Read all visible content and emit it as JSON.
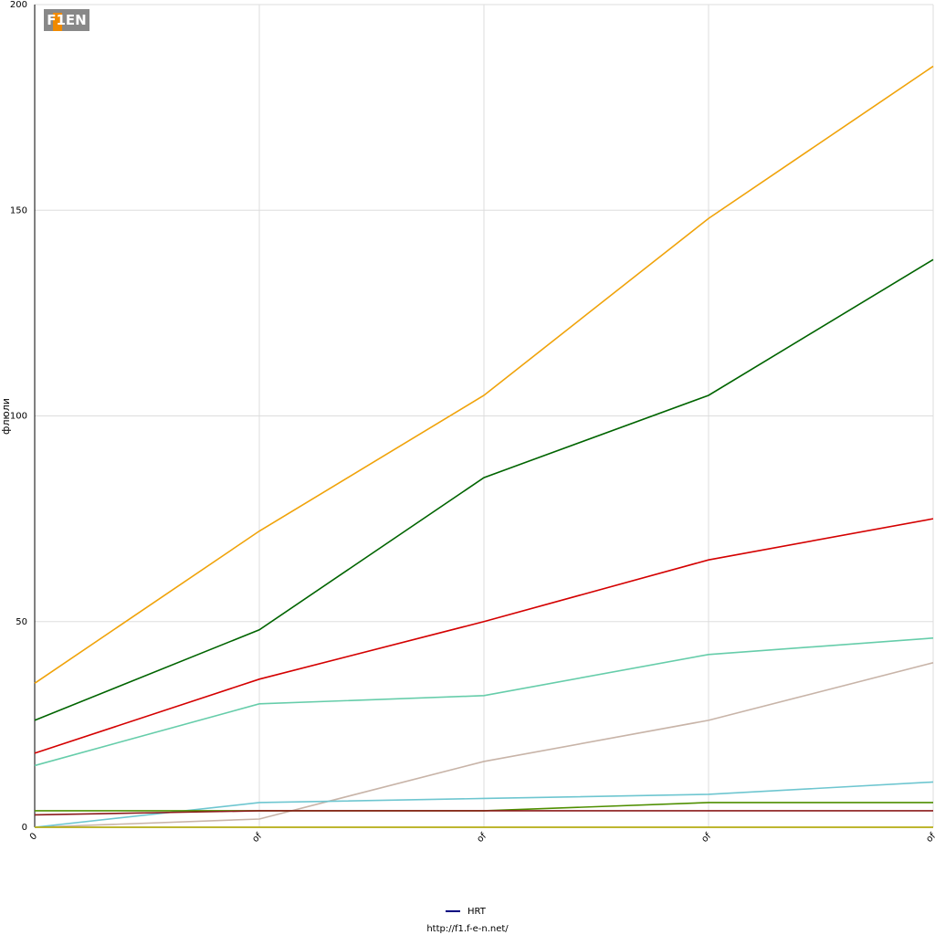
{
  "chart_data": {
    "type": "line",
    "logo": "F1EN",
    "y_label": "флюли",
    "categories": [
      "0",
      "of",
      "of",
      "of",
      "of"
    ],
    "ylim": [
      0,
      200
    ],
    "yticks": [
      0,
      50,
      100,
      150,
      200
    ],
    "grid": true,
    "series": [
      {
        "color": "#f0a30a",
        "values": [
          35,
          72,
          105,
          148,
          185
        ]
      },
      {
        "color": "#006400",
        "values": [
          26,
          48,
          85,
          105,
          138
        ]
      },
      {
        "color": "#d40000",
        "values": [
          18,
          36,
          50,
          65,
          75
        ]
      },
      {
        "color": "#66cdaa",
        "values": [
          15,
          30,
          32,
          42,
          46
        ]
      },
      {
        "color": "#c8b4a8",
        "values": [
          0,
          2,
          16,
          26,
          40
        ]
      },
      {
        "color": "#6ec6d0",
        "values": [
          0,
          6,
          7,
          8,
          11
        ]
      },
      {
        "color": "#4f8f00",
        "values": [
          4,
          4,
          4,
          6,
          6
        ]
      },
      {
        "color": "#8b1a1a",
        "values": [
          3,
          4,
          4,
          4,
          4
        ]
      },
      {
        "name": "HRT",
        "color": "#000080",
        "values": [
          0,
          0,
          0,
          0,
          0
        ]
      },
      {
        "color": "#d4c800",
        "values": [
          0,
          0,
          0,
          0,
          0
        ]
      }
    ],
    "footer": "http://f1.f-e-n.net/"
  }
}
